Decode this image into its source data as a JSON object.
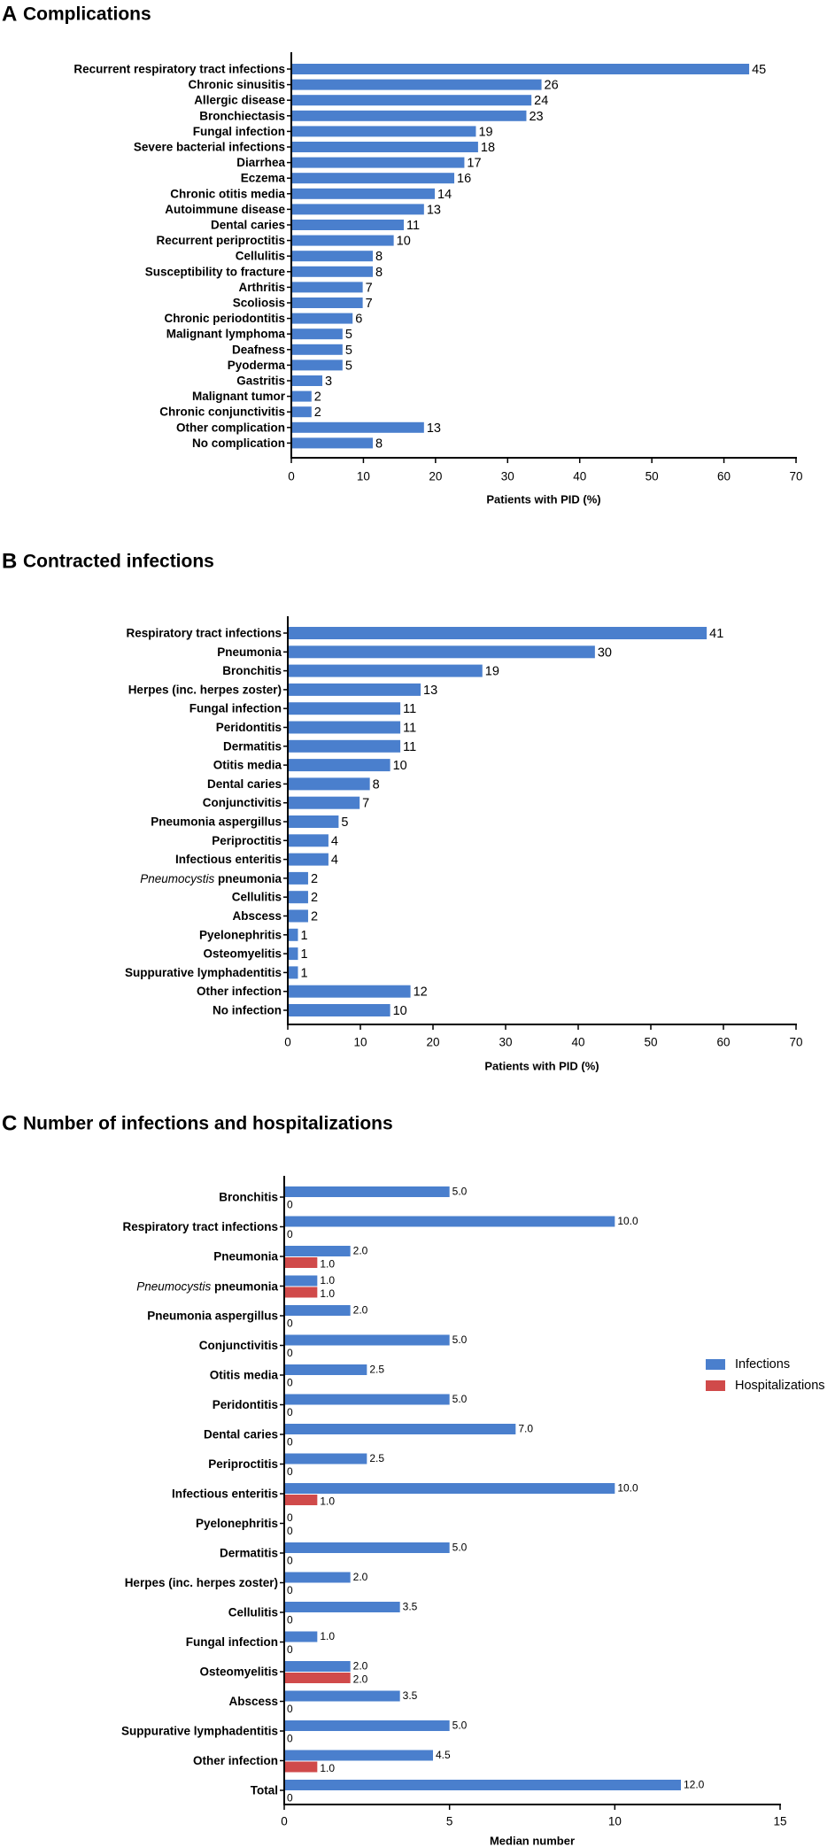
{
  "colors": {
    "infections": "#4a7fcd",
    "hospitalizations": "#d04a4a",
    "axis": "#000000"
  },
  "chart_data": [
    {
      "type": "bar",
      "orientation": "horizontal",
      "letter": "A",
      "title": "Complications",
      "xlabel": "Patients with PID (%)",
      "xlim": [
        0,
        70
      ],
      "xticks": [
        0,
        10,
        20,
        30,
        40,
        50,
        60,
        70
      ],
      "categories": [
        "Recurrent respiratory tract infections",
        "Chronic sinusitis",
        "Allergic disease",
        "Bronchiectasis",
        "Fungal infection",
        "Severe bacterial infections",
        "Diarrhea",
        "Eczema",
        "Chronic otitis media",
        "Autoimmune disease",
        "Dental caries",
        "Recurrent periproctitis",
        "Cellulitis",
        "Susceptibility to fracture",
        "Arthritis",
        "Scoliosis",
        "Chronic periodontitis",
        "Malignant lymphoma",
        "Deafness",
        "Pyoderma",
        "Gastritis",
        "Malignant tumor",
        "Chronic conjunctivitis",
        "Other complication",
        "No complication"
      ],
      "values": [
        63.5,
        34.7,
        33.3,
        32.6,
        25.6,
        25.9,
        24.0,
        22.6,
        19.9,
        18.4,
        15.6,
        14.2,
        11.3,
        11.3,
        9.9,
        9.9,
        8.5,
        7.1,
        7.1,
        7.1,
        4.3,
        2.8,
        2.8,
        18.4,
        11.3
      ],
      "data_labels": [
        "45",
        "26",
        "24",
        "23",
        "19",
        "18",
        "17",
        "16",
        "14",
        "13",
        "11",
        "10",
        "8",
        "8",
        "7",
        "7",
        "6",
        "5",
        "5",
        "5",
        "3",
        "2",
        "2",
        "13",
        "8"
      ]
    },
    {
      "type": "bar",
      "orientation": "horizontal",
      "letter": "B",
      "title": "Contracted infections",
      "xlabel": "Patients with PID (%)",
      "xlim": [
        0,
        70
      ],
      "xticks": [
        0,
        10,
        20,
        30,
        40,
        50,
        60,
        70
      ],
      "categories": [
        "Respiratory tract infections",
        "Pneumonia",
        "Bronchitis",
        "Herpes (inc. herpes zoster)",
        "Fungal infection",
        "Peridontitis",
        "Dermatitis",
        "Otitis media",
        "Dental caries",
        "Conjunctivitis",
        "Pneumonia aspergillus",
        "Periproctitis",
        "Infectious enteritis",
        "Pneumocystis pneumonia",
        "Cellulitis",
        "Abscess",
        "Pyelonephritis",
        "Osteomyelitis",
        "Suppurative lymphadentitis",
        "Other infection",
        "No infection"
      ],
      "italic_prefix": {
        "Pneumocystis pneumonia": "Pneumocystis"
      },
      "values": [
        57.7,
        42.3,
        26.8,
        18.3,
        15.5,
        15.5,
        15.5,
        14.1,
        11.3,
        9.9,
        7.0,
        5.6,
        5.6,
        2.8,
        2.8,
        2.8,
        1.4,
        1.4,
        1.4,
        16.9,
        14.1
      ],
      "data_labels": [
        "41",
        "30",
        "19",
        "13",
        "11",
        "11",
        "11",
        "10",
        "8",
        "7",
        "5",
        "4",
        "4",
        "2",
        "2",
        "2",
        "1",
        "1",
        "1",
        "12",
        "10"
      ]
    },
    {
      "type": "bar",
      "orientation": "horizontal",
      "letter": "C",
      "title": "Number of infections and hospitalizations",
      "xlabel": "Median number",
      "xlim": [
        0,
        15
      ],
      "xticks": [
        0,
        5,
        10,
        15
      ],
      "categories": [
        "Bronchitis",
        "Respiratory tract infections",
        "Pneumonia",
        "Pneumocystis pneumonia",
        "Pneumonia aspergillus",
        "Conjunctivitis",
        "Otitis media",
        "Peridontitis",
        "Dental caries",
        "Periproctitis",
        "Infectious enteritis",
        "Pyelonephritis",
        "Dermatitis",
        "Herpes (inc. herpes zoster)",
        "Cellulitis",
        "Fungal infection",
        "Osteomyelitis",
        "Abscess",
        "Suppurative lymphadentitis",
        "Other infection",
        "Total"
      ],
      "italic_prefix": {
        "Pneumocystis pneumonia": "Pneumocystis"
      },
      "legend": {
        "position": "right",
        "entries": [
          "Infections",
          "Hospitalizations"
        ]
      },
      "series": [
        {
          "name": "Infections",
          "values": [
            5.0,
            10.0,
            2.0,
            1.0,
            2.0,
            5.0,
            2.5,
            5.0,
            7.0,
            2.5,
            10.0,
            0,
            5.0,
            2.0,
            3.5,
            1.0,
            2.0,
            3.5,
            5.0,
            4.5,
            12.0
          ],
          "data_labels": [
            "5.0",
            "10.0",
            "2.0",
            "1.0",
            "2.0",
            "5.0",
            "2.5",
            "5.0",
            "7.0",
            "2.5",
            "10.0",
            "0",
            "5.0",
            "2.0",
            "3.5",
            "1.0",
            "2.0",
            "3.5",
            "5.0",
            "4.5",
            "12.0"
          ]
        },
        {
          "name": "Hospitalizations",
          "values": [
            0,
            0,
            1.0,
            1.0,
            0,
            0,
            0,
            0,
            0,
            0,
            1.0,
            0,
            0,
            0,
            0,
            0,
            2.0,
            0,
            0,
            1.0,
            0
          ],
          "data_labels": [
            "0",
            "0",
            "1.0",
            "1.0",
            "0",
            "0",
            "0",
            "0",
            "0",
            "0",
            "1.0",
            "0",
            "0",
            "0",
            "0",
            "0",
            "2.0",
            "0",
            "0",
            "1.0",
            "0"
          ]
        }
      ]
    }
  ]
}
